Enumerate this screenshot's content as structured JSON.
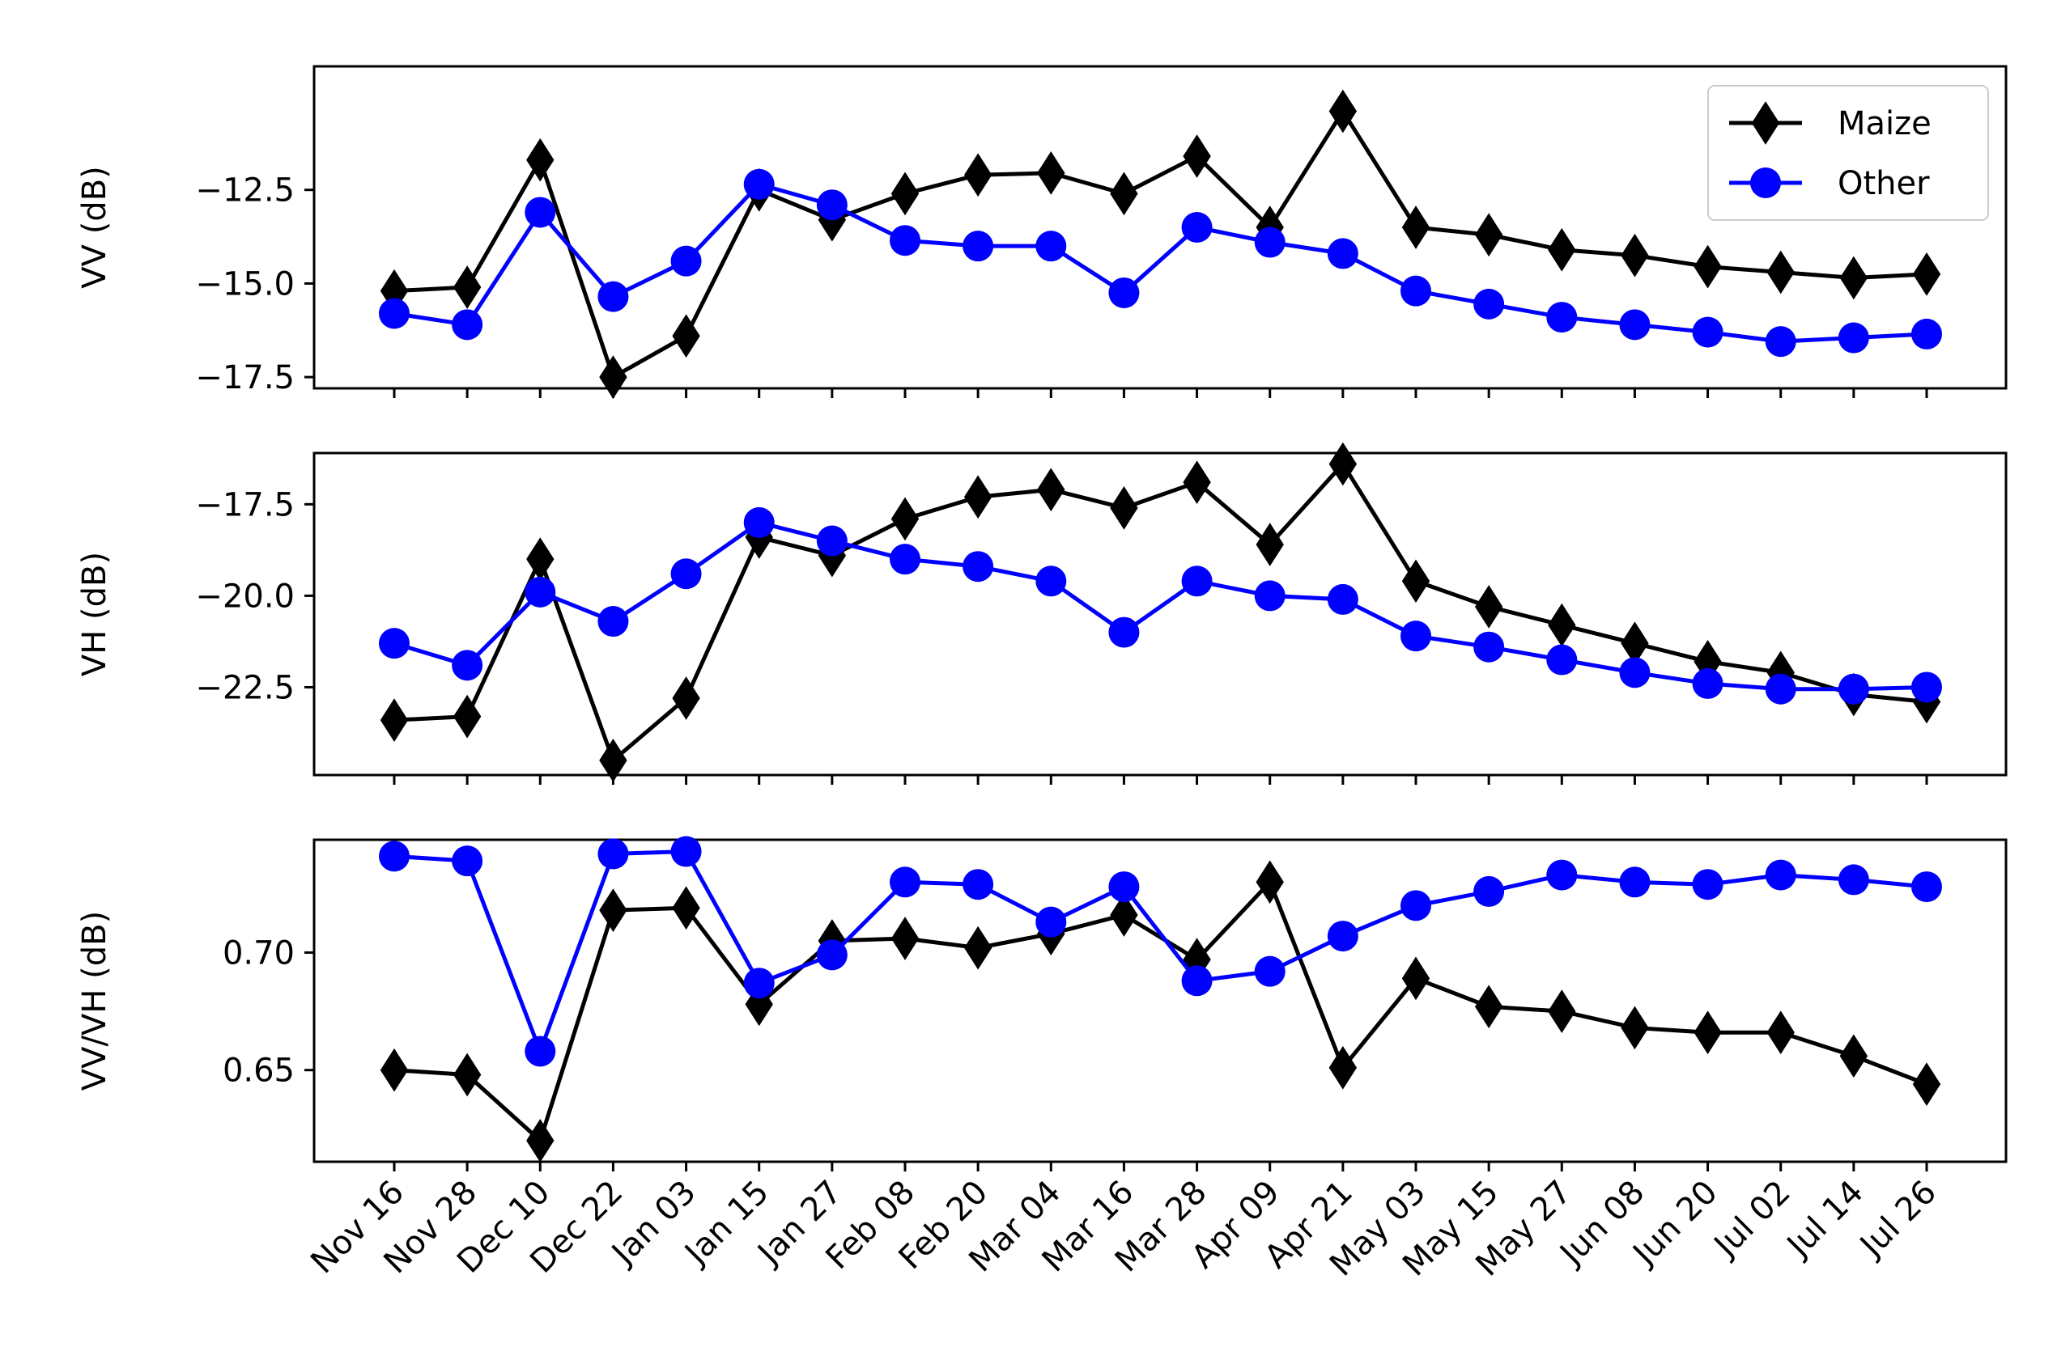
{
  "chart_data": {
    "type": "line",
    "categories": [
      "Nov 16",
      "Nov 28",
      "Dec 10",
      "Dec 22",
      "Jan 03",
      "Jan 15",
      "Jan 27",
      "Feb 08",
      "Feb 20",
      "Mar 04",
      "Mar 16",
      "Mar 28",
      "Apr 09",
      "Apr 21",
      "May 03",
      "May 15",
      "May 27",
      "Jun 08",
      "Jun 20",
      "Jul 02",
      "Jul 14",
      "Jul 26"
    ],
    "colors": {
      "Maize": "#000000",
      "Other": "#0000ff"
    },
    "markers": {
      "Maize": "diamond",
      "Other": "circle"
    },
    "legend": {
      "placement": "top-right",
      "panel": 0,
      "entries": [
        "Maize",
        "Other"
      ]
    },
    "grid": false,
    "panels": [
      {
        "ylabel": "VV (dB)",
        "ylim": [
          -17.8,
          -9.2
        ],
        "yticks": [
          -12.5,
          -15.0,
          -17.5
        ],
        "ytick_labels": [
          "−12.5",
          "−15.0",
          "−17.5"
        ],
        "series": [
          {
            "name": "Maize",
            "values": [
              -15.2,
              -15.1,
              -11.7,
              -17.5,
              -16.4,
              -12.5,
              -13.3,
              -12.6,
              -12.1,
              -12.05,
              -12.6,
              -11.6,
              -13.5,
              -10.4,
              -13.5,
              -13.7,
              -14.1,
              -14.25,
              -14.55,
              -14.7,
              -14.85,
              -14.75
            ]
          },
          {
            "name": "Other",
            "values": [
              -15.8,
              -16.1,
              -13.1,
              -15.35,
              -14.4,
              -12.35,
              -12.9,
              -13.85,
              -14.0,
              -14.0,
              -15.25,
              -13.5,
              -13.9,
              -14.2,
              -15.2,
              -15.55,
              -15.9,
              -16.1,
              -16.3,
              -16.55,
              -16.45,
              -16.35
            ]
          }
        ]
      },
      {
        "ylabel": "VH (dB)",
        "ylim": [
          -24.9,
          -16.1
        ],
        "yticks": [
          -17.5,
          -20.0,
          -22.5
        ],
        "ytick_labels": [
          "−17.5",
          "−20.0",
          "−22.5"
        ],
        "series": [
          {
            "name": "Maize",
            "values": [
              -23.4,
              -23.3,
              -19.0,
              -24.5,
              -22.8,
              -18.4,
              -18.9,
              -17.9,
              -17.3,
              -17.1,
              -17.6,
              -16.9,
              -18.6,
              -16.4,
              -19.6,
              -20.3,
              -20.8,
              -21.3,
              -21.8,
              -22.1,
              -22.7,
              -22.9
            ]
          },
          {
            "name": "Other",
            "values": [
              -21.3,
              -21.9,
              -19.9,
              -20.7,
              -19.4,
              -18.0,
              -18.5,
              -19.0,
              -19.2,
              -19.6,
              -21.0,
              -19.6,
              -20.0,
              -20.1,
              -21.1,
              -21.4,
              -21.75,
              -22.1,
              -22.4,
              -22.55,
              -22.55,
              -22.5
            ]
          }
        ]
      },
      {
        "ylabel": "VV/VH (dB)",
        "ylim": [
          0.611,
          0.748
        ],
        "yticks": [
          0.7,
          0.65
        ],
        "ytick_labels": [
          "0.70",
          "0.65"
        ],
        "series": [
          {
            "name": "Maize",
            "values": [
              0.65,
              0.648,
              0.62,
              0.718,
              0.719,
              0.678,
              0.705,
              0.706,
              0.702,
              0.708,
              0.716,
              0.697,
              0.73,
              0.651,
              0.689,
              0.677,
              0.675,
              0.668,
              0.666,
              0.666,
              0.656,
              0.644
            ]
          },
          {
            "name": "Other",
            "values": [
              0.741,
              0.739,
              0.658,
              0.742,
              0.743,
              0.687,
              0.699,
              0.73,
              0.729,
              0.713,
              0.728,
              0.688,
              0.692,
              0.707,
              0.72,
              0.726,
              0.733,
              0.73,
              0.729,
              0.733,
              0.731,
              0.728
            ]
          }
        ]
      }
    ]
  }
}
